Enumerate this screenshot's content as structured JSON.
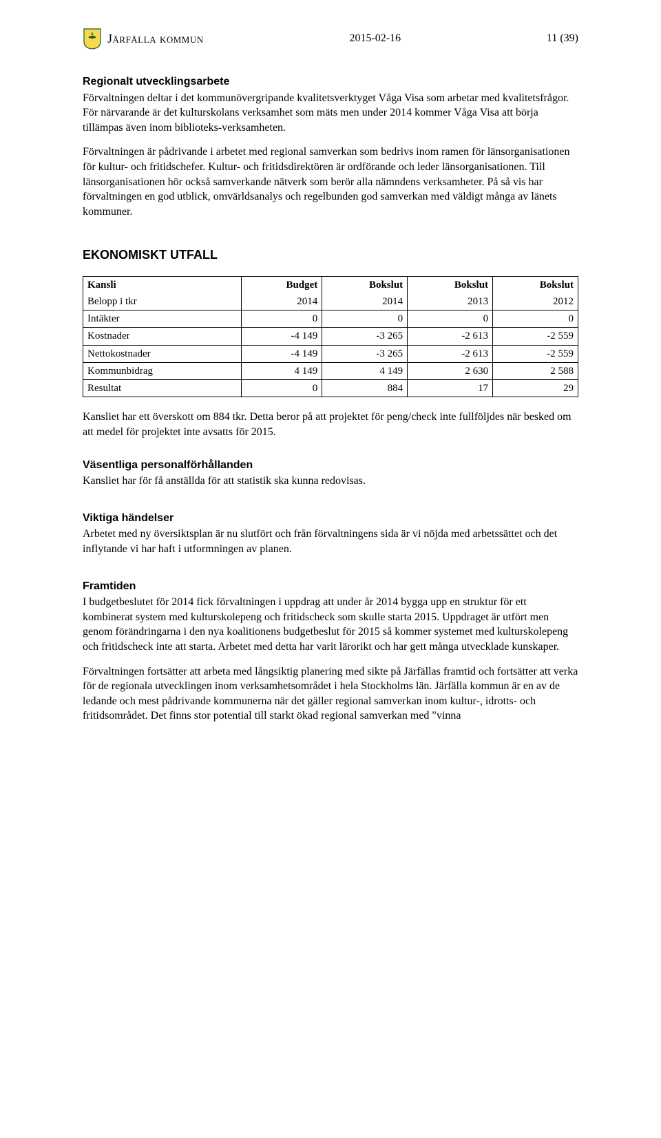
{
  "header": {
    "brand": "Järfälla kommun",
    "date": "2015-02-16",
    "page": "11 (39)"
  },
  "s1": {
    "title": "Regionalt utvecklingsarbete",
    "p1": "Förvaltningen deltar i det kommunövergripande kvalitetsverktyget Våga Visa som arbetar med kvalitetsfrågor. För närvarande är det kulturskolans verksamhet som mäts men under 2014 kommer Våga Visa att börja tillämpas även inom biblioteks-verksamheten.",
    "p2": "Förvaltningen är pådrivande i arbetet med regional samverkan som bedrivs inom ramen för länsorganisationen för kultur- och fritidschefer. Kultur- och fritidsdirektören är ordförande och leder länsorganisationen. Till länsorganisationen hör också samverkande nätverk som berör alla nämndens verksamheter. På så vis har förvaltningen en god utblick, omvärldsanalys och regelbunden god samverkan med väldigt många av länets kommuner."
  },
  "s2": {
    "title": "EKONOMISKT UTFALL",
    "table": {
      "head1": [
        "Kansli",
        "Budget",
        "Bokslut",
        "Bokslut",
        "Bokslut"
      ],
      "head2": [
        "Belopp i tkr",
        "2014",
        "2014",
        "2013",
        "2012"
      ],
      "rows": [
        [
          "Intäkter",
          "0",
          "0",
          "0",
          "0"
        ],
        [
          "Kostnader",
          "-4 149",
          "-3 265",
          "-2 613",
          "-2 559"
        ],
        [
          "Nettokostnader",
          "-4 149",
          "-3 265",
          "-2 613",
          "-2 559"
        ],
        [
          "Kommunbidrag",
          "4 149",
          "4 149",
          "2 630",
          "2 588"
        ],
        [
          "Resultat",
          "0",
          "884",
          "17",
          "29"
        ]
      ]
    },
    "p_after": "Kansliet har ett överskott om 884 tkr. Detta beror på att projektet för peng/check inte fullföljdes när besked om att medel för projektet inte avsatts för 2015."
  },
  "s3": {
    "title": "Väsentliga personalförhållanden",
    "p": "Kansliet har för få anställda för att statistik ska kunna redovisas."
  },
  "s4": {
    "title": "Viktiga händelser",
    "p": "Arbetet med ny översiktsplan är nu slutfört och från förvaltningens sida är vi nöjda med arbetssättet och det inflytande vi har haft i utformningen av planen."
  },
  "s5": {
    "title": "Framtiden",
    "p1": "I budgetbeslutet för 2014 fick förvaltningen i uppdrag att under år 2014 bygga upp en struktur för ett kombinerat system med kulturskolepeng och fritidscheck som skulle starta 2015. Uppdraget är utfört men genom förändringarna i den nya koalitionens budgetbeslut för 2015 så kommer systemet med kulturskolepeng och fritidscheck inte att starta. Arbetet med detta har varit lärorikt och har gett många utvecklade kunskaper.",
    "p2": "Förvaltningen fortsätter att arbeta med långsiktig planering med sikte på Järfällas framtid och fortsätter att verka för de regionala utvecklingen inom verksamhetsområdet i hela Stockholms län. Järfälla kommun är en av de ledande och mest pådrivande kommunerna när det gäller regional samverkan inom kultur-, idrotts- och fritidsområdet. Det finns stor potential till starkt ökad regional samverkan med \"vinna"
  }
}
